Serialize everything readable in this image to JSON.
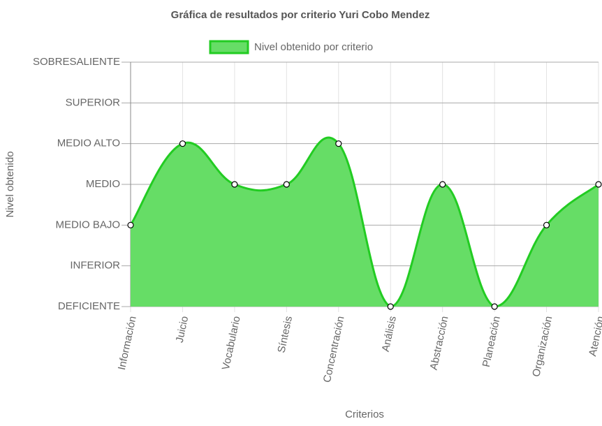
{
  "chart_data": {
    "type": "line",
    "title": "Gráfica de resultados por criterio Yuri Cobo Mendez",
    "x_label": "Criterios",
    "y_label": "Nivel obtenido",
    "categories": [
      "Información",
      "Juicio",
      "Vocabulario",
      "Síntesis",
      "Concentración",
      "Análisis",
      "Abstracción",
      "Planeación",
      "Organización",
      "Atención"
    ],
    "series": [
      {
        "name": "Nivel obtenido por criterio",
        "color": "#22cc22",
        "fill_color": "#66dd66",
        "values": [
          2,
          4,
          3,
          3,
          4,
          0,
          3,
          0,
          2,
          3
        ]
      }
    ],
    "ylim": [
      0,
      6
    ],
    "yticks": [
      {
        "value": 0,
        "label": "DEFICIENTE"
      },
      {
        "value": 1,
        "label": "INFERIOR"
      },
      {
        "value": 2,
        "label": "MEDIO BAJO"
      },
      {
        "value": 3,
        "label": "MEDIO"
      },
      {
        "value": 4,
        "label": "MEDIO ALTO"
      },
      {
        "value": 5,
        "label": "SUPERIOR"
      },
      {
        "value": 6,
        "label": "SOBRESALIENTE"
      }
    ],
    "grid": true,
    "fill": true,
    "legend": "top"
  }
}
